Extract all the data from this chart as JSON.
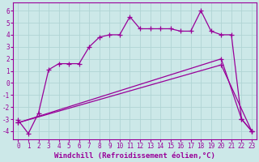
{
  "line1_x": [
    0,
    1,
    2,
    3,
    4,
    5,
    6,
    7,
    8,
    9,
    10,
    11,
    12,
    13,
    14,
    15,
    16,
    17,
    18,
    19,
    20,
    21,
    22,
    23
  ],
  "line1_y": [
    -3.1,
    -4.2,
    -2.5,
    1.1,
    1.6,
    1.6,
    1.6,
    3.0,
    3.8,
    4.0,
    4.0,
    5.5,
    4.5,
    4.5,
    4.5,
    4.5,
    4.3,
    4.3,
    6.0,
    4.3,
    4.0,
    4.0,
    -3.0,
    -4.0
  ],
  "line2_x": [
    0,
    20,
    22,
    23
  ],
  "line2_y": [
    -3.3,
    2.0,
    -3.0,
    -4.0
  ],
  "line3_x": [
    0,
    20,
    23
  ],
  "line3_y": [
    -3.3,
    1.5,
    -4.0
  ],
  "line_color": "#990099",
  "bg_color": "#cce8e8",
  "grid_color": "#b0d4d4",
  "xlabel": "Windchill (Refroidissement éolien,°C)",
  "xlim": [
    -0.5,
    23.5
  ],
  "ylim": [
    -4.7,
    6.7
  ],
  "yticks": [
    -4,
    -3,
    -2,
    -1,
    0,
    1,
    2,
    3,
    4,
    5,
    6
  ],
  "xticks": [
    0,
    1,
    2,
    3,
    4,
    5,
    6,
    7,
    8,
    9,
    10,
    11,
    12,
    13,
    14,
    15,
    16,
    17,
    18,
    19,
    20,
    21,
    22,
    23
  ],
  "marker": "+",
  "markersize": 4,
  "linewidth": 0.9,
  "tick_fontsize": 5.5,
  "xlabel_fontsize": 6.5
}
